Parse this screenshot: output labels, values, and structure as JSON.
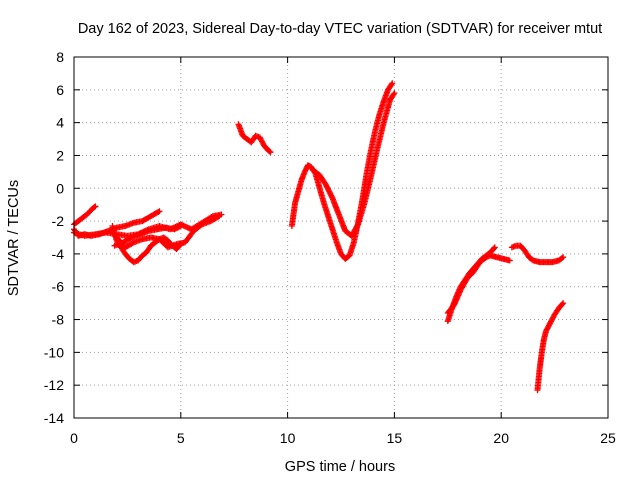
{
  "chart_data": {
    "type": "scatter",
    "title": "Day 162 of 2023, Sidereal Day-to-day VTEC variation (SDTVAR) for receiver mtut",
    "xlabel": "GPS time / hours",
    "ylabel": "SDTVAR / TECUs",
    "xlim": [
      0,
      25
    ],
    "ylim": [
      -14,
      8
    ],
    "xticks": [
      "0",
      "5",
      "10",
      "15",
      "20",
      "25"
    ],
    "yticks": [
      "-14",
      "-12",
      "-10",
      "-8",
      "-6",
      "-4",
      "-2",
      "0",
      "2",
      "4",
      "6",
      "8"
    ],
    "grid": true,
    "marker": "+",
    "color": "#ff0000",
    "series": [
      {
        "x": [
          0.0,
          0.3,
          0.6,
          0.9,
          1.0
        ],
        "y": [
          -2.2,
          -1.9,
          -1.6,
          -1.2,
          -1.1
        ]
      },
      {
        "x": [
          0.0,
          0.2,
          0.5,
          0.8,
          1.2,
          1.6,
          2.0,
          2.4,
          2.8,
          3.2,
          3.6,
          4.0
        ],
        "y": [
          -2.5,
          -2.9,
          -2.8,
          -2.9,
          -2.8,
          -2.6,
          -2.4,
          -2.3,
          -2.1,
          -2.0,
          -1.7,
          -1.4
        ]
      },
      {
        "x": [
          0.0,
          0.5,
          1.0,
          1.5,
          2.0,
          2.5,
          3.0,
          3.5,
          4.0,
          4.5,
          5.0,
          5.5,
          6.0,
          6.5,
          6.9
        ],
        "y": [
          -2.7,
          -2.9,
          -2.8,
          -2.7,
          -2.8,
          -2.9,
          -2.8,
          -2.5,
          -2.3,
          -2.5,
          -2.2,
          -2.5,
          -2.1,
          -1.7,
          -1.6
        ]
      },
      {
        "x": [
          1.8,
          2.0,
          2.2,
          2.4,
          2.6,
          2.8,
          3.0,
          3.2,
          3.4,
          3.6,
          3.8,
          4.0,
          4.2,
          4.4,
          4.6,
          4.8,
          5.0
        ],
        "y": [
          -2.3,
          -3.2,
          -3.6,
          -4.0,
          -4.3,
          -4.5,
          -4.4,
          -4.1,
          -3.9,
          -3.5,
          -3.3,
          -3.1,
          -3.0,
          -3.2,
          -3.5,
          -3.7,
          -3.4
        ]
      },
      {
        "x": [
          1.9,
          2.3,
          2.7,
          3.1,
          3.5,
          3.9,
          4.3,
          4.7,
          5.0
        ],
        "y": [
          -3.5,
          -3.3,
          -3.0,
          -2.8,
          -2.6,
          -2.5,
          -2.4,
          -2.5,
          -2.3
        ]
      },
      {
        "x": [
          2.0,
          2.4,
          2.8,
          3.2,
          3.6,
          4.0,
          4.4,
          4.8,
          5.2,
          5.6,
          6.0,
          6.4,
          6.8
        ],
        "y": [
          -3.0,
          -3.6,
          -3.3,
          -3.1,
          -3.0,
          -3.1,
          -3.6,
          -3.4,
          -3.3,
          -2.6,
          -2.2,
          -2.0,
          -1.7
        ]
      },
      {
        "x": [
          7.7,
          7.9,
          8.1,
          8.3,
          8.5,
          8.7,
          8.9,
          9.1,
          9.2
        ],
        "y": [
          3.9,
          3.2,
          3.0,
          2.8,
          3.2,
          3.1,
          2.6,
          2.3,
          2.2
        ]
      },
      {
        "x": [
          10.2,
          10.35,
          10.5,
          10.65,
          10.8,
          10.95,
          11.1,
          11.3,
          11.5,
          11.7,
          11.9,
          12.1,
          12.3,
          12.5,
          12.7,
          12.9,
          13.1,
          13.3,
          13.5,
          13.7,
          13.9,
          14.1,
          14.3,
          14.5,
          14.7,
          14.9
        ],
        "y": [
          -2.3,
          -0.9,
          -0.2,
          0.5,
          1.0,
          1.4,
          1.3,
          0.9,
          0.0,
          -0.9,
          -1.7,
          -2.5,
          -3.3,
          -4.0,
          -4.3,
          -4.1,
          -3.3,
          -2.1,
          -0.7,
          0.9,
          2.3,
          3.5,
          4.5,
          5.3,
          6.0,
          6.4
        ]
      },
      {
        "x": [
          11.2,
          11.5,
          11.8,
          12.1,
          12.4,
          12.7,
          13.0,
          13.3,
          13.6,
          13.9,
          14.2,
          14.5,
          14.8,
          15.0
        ],
        "y": [
          1.1,
          0.8,
          0.2,
          -0.6,
          -1.6,
          -2.6,
          -2.9,
          -2.2,
          -0.9,
          0.7,
          2.4,
          4.0,
          5.4,
          5.8
        ]
      },
      {
        "x": [
          17.5,
          17.7,
          17.9,
          18.1,
          18.3,
          18.5,
          18.7,
          18.9,
          19.1,
          19.3,
          19.5,
          19.7
        ],
        "y": [
          -8.1,
          -7.3,
          -6.6,
          -6.0,
          -5.6,
          -5.2,
          -4.9,
          -4.6,
          -4.3,
          -4.1,
          -3.9,
          -3.6
        ]
      },
      {
        "x": [
          17.5,
          17.8,
          18.1,
          18.4,
          18.7,
          19.0,
          19.3,
          19.5,
          19.8,
          20.1,
          20.4
        ],
        "y": [
          -7.6,
          -7.1,
          -6.2,
          -5.5,
          -5.1,
          -4.5,
          -4.2,
          -4.1,
          -4.2,
          -4.3,
          -4.4
        ]
      },
      {
        "x": [
          20.5,
          20.7,
          20.9,
          21.1,
          21.3,
          21.5,
          21.8,
          22.1,
          22.4,
          22.7,
          22.9
        ],
        "y": [
          -3.6,
          -3.5,
          -3.5,
          -3.8,
          -4.2,
          -4.4,
          -4.5,
          -4.5,
          -4.5,
          -4.4,
          -4.2
        ]
      },
      {
        "x": [
          21.7,
          21.8,
          21.9,
          22.0,
          22.1,
          22.3,
          22.5,
          22.7,
          22.9
        ],
        "y": [
          -12.3,
          -11.0,
          -10.0,
          -9.2,
          -8.7,
          -8.2,
          -7.7,
          -7.3,
          -7.0
        ]
      }
    ]
  }
}
